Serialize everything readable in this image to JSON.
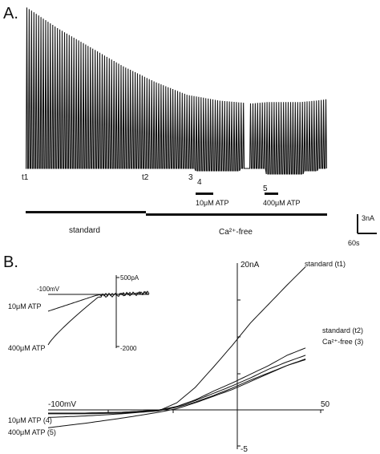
{
  "panel_a": {
    "label": "A.",
    "time_marks": [
      "t1",
      "t2",
      "3",
      "4",
      "5"
    ],
    "drugs": [
      {
        "label": "10μM ATP"
      },
      {
        "label": "400μM ATP"
      }
    ],
    "conditions": [
      "standard",
      "Ca²⁺-free"
    ],
    "scale_current": "3nA",
    "scale_time": "60s"
  },
  "panel_b": {
    "label": "B.",
    "y_max_label": "20nA",
    "y_min_label": "-5",
    "x_min_label": "-100mV",
    "x_max_label": "50",
    "curve_labels": [
      "standard (t1)",
      "standard (t2)",
      "Ca²⁺-free (3)",
      "10μM ATP (4)",
      "400μM ATP (5)"
    ],
    "inset": {
      "x_label": "-100mV",
      "y_top_label": "500pA",
      "y_bottom_label": "-2000",
      "curve_labels": [
        "10μM ATP",
        "400μM ATP"
      ]
    }
  },
  "chart_data": [
    {
      "type": "line",
      "title": "",
      "xlabel": "",
      "ylabel": "",
      "x_units": "s",
      "y_units": "nA",
      "series": [
        {
          "name": "",
          "x": [
            0,
            60,
            120,
            180,
            240,
            300,
            330,
            360,
            390,
            420,
            450,
            480,
            510,
            540,
            560
          ],
          "values": [
            11.2,
            9.7,
            8.4,
            7.1,
            6.0,
            5.1,
            4.9,
            4.7,
            4.6,
            4.5,
            4.6,
            4.6,
            4.6,
            4.7,
            4.8
          ]
        }
      ]
    },
    {
      "type": "line",
      "title": "",
      "xlabel": "",
      "ylabel": "",
      "xlim": [
        -100,
        50
      ],
      "ylim": [
        -5,
        20
      ],
      "series": [
        {
          "name": "standard (t1)",
          "x": [
            -100,
            -80,
            -60,
            -40,
            -30,
            -20,
            -10,
            0,
            10,
            20,
            30,
            40
          ],
          "values": [
            -0.6,
            -0.6,
            -0.5,
            -0.2,
            0.9,
            3.0,
            5.8,
            8.7,
            11.8,
            14.4,
            17.0,
            19.5
          ]
        },
        {
          "name": "standard (t2)",
          "x": [
            -100,
            -80,
            -60,
            -40,
            -30,
            -20,
            -10,
            0,
            10,
            20,
            30,
            40
          ],
          "values": [
            -0.5,
            -0.5,
            -0.4,
            -0.1,
            0.4,
            1.3,
            2.5,
            3.6,
            4.8,
            6.0,
            7.4,
            8.4
          ]
        },
        {
          "name": "Ca²⁺-free (3)",
          "x": [
            -100,
            -80,
            -60,
            -40,
            -30,
            -20,
            -10,
            0,
            10,
            20,
            30,
            40
          ],
          "values": [
            -0.5,
            -0.5,
            -0.4,
            -0.1,
            0.4,
            1.2,
            2.2,
            3.2,
            4.3,
            5.5,
            6.5,
            7.4
          ]
        },
        {
          "name": "10μM ATP (4)",
          "x": [
            -100,
            -80,
            -60,
            -40,
            -30,
            -20,
            -10,
            0,
            10,
            20,
            30,
            40
          ],
          "values": [
            -1.1,
            -0.9,
            -0.6,
            -0.2,
            0.3,
            1.0,
            1.9,
            2.9,
            4.0,
            5.0,
            6.0,
            6.9
          ]
        },
        {
          "name": "400μM ATP (5)",
          "x": [
            -100,
            -80,
            -60,
            -40,
            -30,
            -20,
            -10,
            0,
            10,
            20,
            30,
            40
          ],
          "values": [
            -2.5,
            -1.9,
            -1.2,
            -0.4,
            0.1,
            0.9,
            1.8,
            2.7,
            3.8,
            4.9,
            6.0,
            6.8
          ]
        }
      ]
    }
  ]
}
